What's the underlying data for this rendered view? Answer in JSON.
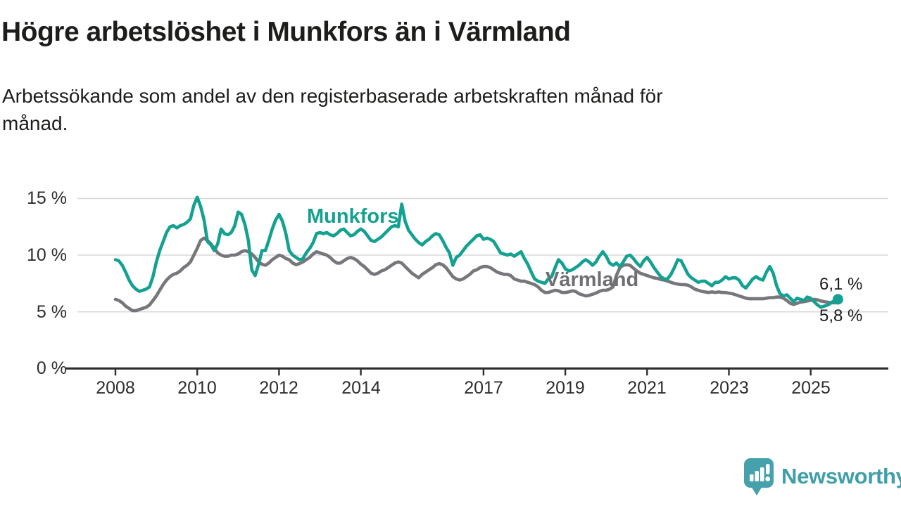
{
  "header": {
    "title": "Högre arbetslöshet i Munkfors än i Värmland",
    "subtitle": "Arbetssökande som andel av den registerbaserade arbetskraften månad för månad."
  },
  "chart_data": {
    "type": "line",
    "title": "Högre arbetslöshet i Munkfors än i Värmland",
    "unit": "%",
    "frequency": "monthly",
    "start": "2008-01",
    "end": "2025-09",
    "grid": true,
    "legend": "inline-labels",
    "ylim": [
      0,
      16
    ],
    "y_axis": {
      "ticks": [
        {
          "value": 0,
          "label": "0 %"
        },
        {
          "value": 5,
          "label": "5 %"
        },
        {
          "value": 10,
          "label": "10 %"
        },
        {
          "value": 15,
          "label": "15 %"
        }
      ],
      "gridline_values": [
        5,
        10,
        15
      ]
    },
    "x_axis": {
      "ticks": [
        {
          "value": 2008,
          "label": "2008"
        },
        {
          "value": 2010,
          "label": "2010"
        },
        {
          "value": 2012,
          "label": "2012"
        },
        {
          "value": 2014,
          "label": "2014"
        },
        {
          "value": 2017,
          "label": "2017"
        },
        {
          "value": 2019,
          "label": "2019"
        },
        {
          "value": 2021,
          "label": "2021"
        },
        {
          "value": 2023,
          "label": "2023"
        },
        {
          "value": 2025,
          "label": "2025"
        }
      ]
    },
    "series": [
      {
        "name": "Munkfors",
        "color": "#14a191",
        "end_label": "6,1 %",
        "end_value": 6.1,
        "values": [
          9.6,
          9.5,
          9.1,
          8.5,
          7.8,
          7.3,
          7.0,
          6.8,
          6.9,
          7.0,
          7.2,
          8.1,
          9.4,
          10.4,
          11.2,
          12.0,
          12.5,
          12.6,
          12.4,
          12.6,
          12.7,
          12.9,
          13.2,
          14.4,
          15.1,
          14.3,
          13.1,
          11.2,
          10.9,
          10.4,
          11.0,
          12.3,
          11.9,
          11.8,
          12.0,
          12.6,
          13.8,
          13.6,
          12.7,
          11.3,
          8.7,
          8.2,
          9.2,
          10.4,
          10.4,
          11.3,
          12.3,
          13.1,
          13.6,
          13.0,
          11.9,
          10.4,
          10.0,
          9.8,
          9.6,
          9.7,
          10.2,
          10.6,
          11.1,
          11.9,
          12.0,
          11.9,
          12.0,
          11.8,
          11.7,
          11.9,
          12.2,
          12.3,
          12.0,
          11.7,
          11.8,
          12.1,
          12.3,
          12.1,
          11.7,
          11.3,
          11.2,
          11.4,
          11.6,
          11.9,
          12.2,
          12.5,
          12.6,
          12.5,
          14.5,
          13.0,
          12.2,
          11.8,
          11.4,
          11.1,
          10.9,
          11.2,
          11.4,
          11.7,
          11.9,
          11.8,
          11.3,
          10.7,
          10.2,
          9.1,
          9.8,
          10.0,
          10.4,
          10.8,
          11.1,
          11.4,
          11.7,
          11.8,
          11.4,
          11.5,
          11.4,
          11.2,
          10.7,
          10.2,
          10.1,
          10.0,
          10.1,
          9.9,
          10.1,
          10.3,
          9.7,
          9.2,
          8.5,
          7.9,
          7.7,
          7.6,
          7.5,
          7.9,
          8.1,
          8.9,
          9.6,
          9.3,
          8.8,
          8.6,
          8.7,
          8.9,
          9.1,
          9.4,
          9.6,
          9.4,
          9.1,
          9.4,
          9.9,
          10.3,
          9.9,
          9.3,
          9.1,
          9.3,
          9.0,
          9.4,
          9.9,
          10.0,
          9.7,
          9.3,
          9.0,
          9.5,
          9.8,
          9.4,
          8.9,
          8.5,
          8.1,
          7.9,
          7.9,
          8.3,
          8.9,
          9.6,
          9.5,
          8.9,
          8.3,
          8.0,
          7.8,
          7.6,
          7.7,
          7.7,
          7.5,
          7.3,
          7.6,
          7.6,
          7.8,
          8.1,
          7.9,
          8.0,
          8.0,
          7.8,
          7.3,
          7.1,
          7.5,
          7.9,
          8.1,
          7.9,
          7.8,
          8.5,
          9.0,
          8.4,
          7.3,
          6.6,
          6.4,
          6.5,
          6.2,
          5.9,
          6.2,
          6.1,
          6.0,
          6.3,
          6.2,
          5.9,
          5.6,
          5.4,
          5.5,
          5.6,
          5.8,
          6.0,
          6.1
        ]
      },
      {
        "name": "Värmland",
        "color": "#76767b",
        "end_label": "5,8 %",
        "end_value": 5.8,
        "values": [
          6.1,
          6.0,
          5.8,
          5.5,
          5.3,
          5.1,
          5.1,
          5.2,
          5.3,
          5.4,
          5.6,
          6.0,
          6.4,
          6.9,
          7.4,
          7.8,
          8.1,
          8.3,
          8.4,
          8.6,
          8.9,
          9.1,
          9.4,
          10.0,
          10.6,
          11.3,
          11.5,
          11.3,
          11.0,
          10.6,
          10.2,
          10.0,
          9.9,
          9.9,
          10.0,
          10.0,
          10.1,
          10.3,
          10.4,
          10.3,
          10.1,
          9.8,
          9.4,
          9.2,
          9.1,
          9.3,
          9.6,
          9.8,
          10.0,
          9.9,
          9.7,
          9.6,
          9.3,
          9.15,
          9.25,
          9.4,
          9.6,
          9.8,
          10.1,
          10.3,
          10.2,
          10.1,
          10.0,
          9.8,
          9.5,
          9.3,
          9.3,
          9.5,
          9.7,
          9.8,
          9.7,
          9.5,
          9.2,
          9.0,
          8.7,
          8.4,
          8.3,
          8.4,
          8.6,
          8.7,
          8.9,
          9.1,
          9.3,
          9.4,
          9.3,
          9.0,
          8.7,
          8.4,
          8.2,
          8.0,
          8.3,
          8.5,
          8.7,
          8.9,
          9.15,
          9.25,
          9.15,
          8.9,
          8.5,
          8.1,
          7.9,
          7.8,
          7.9,
          8.1,
          8.3,
          8.6,
          8.7,
          8.9,
          9.0,
          9.0,
          8.9,
          8.7,
          8.5,
          8.4,
          8.3,
          8.3,
          8.2,
          7.9,
          7.8,
          7.7,
          7.7,
          7.6,
          7.5,
          7.4,
          7.2,
          6.9,
          6.7,
          6.7,
          6.8,
          6.9,
          6.85,
          6.7,
          6.7,
          6.75,
          6.85,
          6.8,
          6.6,
          6.5,
          6.4,
          6.45,
          6.55,
          6.65,
          6.8,
          6.9,
          6.9,
          7.0,
          7.2,
          8.2,
          8.9,
          9.1,
          9.15,
          9.1,
          8.85,
          8.6,
          8.4,
          8.3,
          8.2,
          8.1,
          8.0,
          7.95,
          7.85,
          7.8,
          7.7,
          7.6,
          7.5,
          7.45,
          7.4,
          7.4,
          7.35,
          7.2,
          7.0,
          6.9,
          6.8,
          6.75,
          6.7,
          6.75,
          6.7,
          6.75,
          6.7,
          6.7,
          6.65,
          6.6,
          6.5,
          6.4,
          6.3,
          6.2,
          6.15,
          6.15,
          6.15,
          6.15,
          6.15,
          6.2,
          6.25,
          6.25,
          6.3,
          6.3,
          6.2,
          6.0,
          5.75,
          5.65,
          5.75,
          5.85,
          5.9,
          5.95,
          6.0,
          6.1,
          6.05,
          5.95,
          5.9,
          5.85,
          5.8,
          5.8,
          5.8
        ]
      }
    ]
  },
  "footer": {
    "brand": "Newsworthy"
  },
  "colors": {
    "munkfors_line": "#14a191",
    "varmland_line": "#76767b",
    "gridline": "#d9d9d9",
    "axis": "#2e2e2e",
    "text": "#1d1d1b",
    "logo": "#45a1ab"
  }
}
